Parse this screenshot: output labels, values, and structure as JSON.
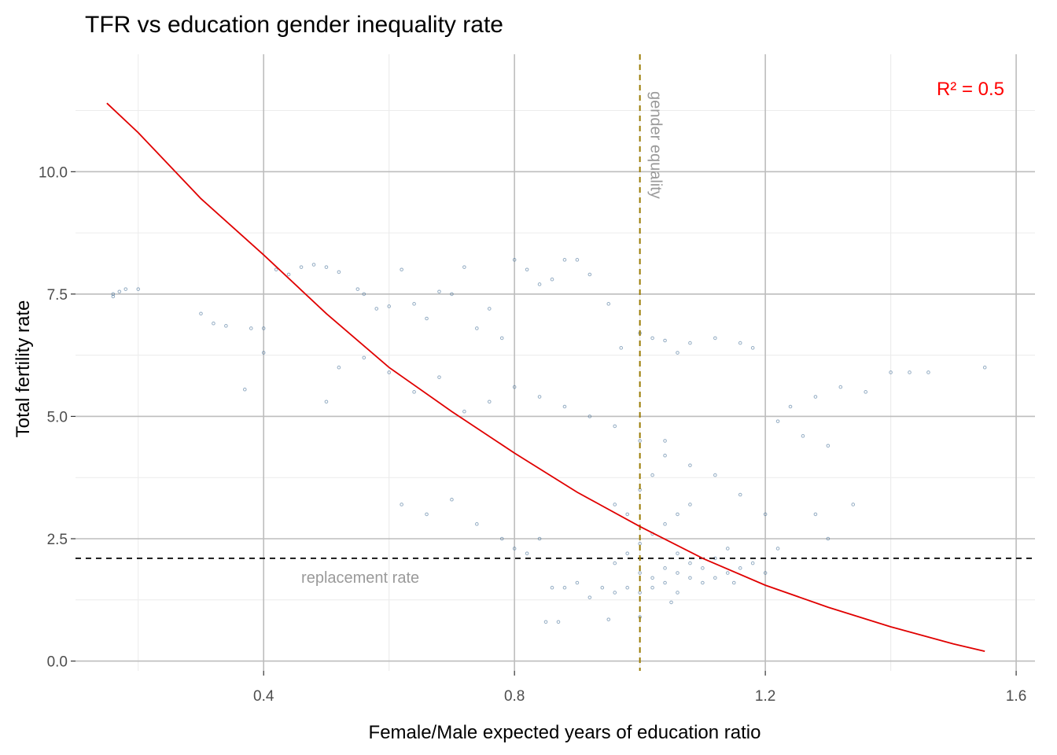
{
  "chart_data": {
    "type": "scatter",
    "title": "TFR vs education gender inequality rate",
    "xlabel": "Female/Male expected years of education ratio",
    "ylabel": "Total fertility rate",
    "xlim": [
      0.1,
      1.63
    ],
    "ylim": [
      -0.2,
      12.4
    ],
    "x_ticks": [
      0.4,
      0.8,
      1.2,
      1.6
    ],
    "x_tick_labels": [
      "0.4",
      "0.8",
      "1.2",
      "1.6"
    ],
    "y_ticks": [
      0.0,
      2.5,
      5.0,
      7.5,
      10.0
    ],
    "y_tick_labels": [
      "0.0",
      "2.5",
      "5.0",
      "7.5",
      "10.0"
    ],
    "grid": true,
    "point_color": "#3a6891",
    "fit_color": "#e00000",
    "series": [
      {
        "type": "scatter",
        "points": [
          [
            0.16,
            7.45
          ],
          [
            0.17,
            7.55
          ],
          [
            0.18,
            7.6
          ],
          [
            0.2,
            7.6
          ],
          [
            0.16,
            7.5
          ],
          [
            0.3,
            7.1
          ],
          [
            0.32,
            6.9
          ],
          [
            0.34,
            6.85
          ],
          [
            0.37,
            5.55
          ],
          [
            0.38,
            6.8
          ],
          [
            0.4,
            6.3
          ],
          [
            0.4,
            6.8
          ],
          [
            0.42,
            8.0
          ],
          [
            0.44,
            7.9
          ],
          [
            0.46,
            8.05
          ],
          [
            0.48,
            8.1
          ],
          [
            0.5,
            8.05
          ],
          [
            0.52,
            7.95
          ],
          [
            0.55,
            7.6
          ],
          [
            0.56,
            7.5
          ],
          [
            0.58,
            7.2
          ],
          [
            0.6,
            7.25
          ],
          [
            0.62,
            8.0
          ],
          [
            0.64,
            7.3
          ],
          [
            0.66,
            7.0
          ],
          [
            0.68,
            7.55
          ],
          [
            0.7,
            7.5
          ],
          [
            0.72,
            8.05
          ],
          [
            0.74,
            6.8
          ],
          [
            0.76,
            7.2
          ],
          [
            0.78,
            6.6
          ],
          [
            0.8,
            8.2
          ],
          [
            0.82,
            8.0
          ],
          [
            0.84,
            7.7
          ],
          [
            0.86,
            7.8
          ],
          [
            0.88,
            8.2
          ],
          [
            0.9,
            8.2
          ],
          [
            0.92,
            7.9
          ],
          [
            0.95,
            7.3
          ],
          [
            0.97,
            6.4
          ],
          [
            1.0,
            6.7
          ],
          [
            1.02,
            6.6
          ],
          [
            1.04,
            6.55
          ],
          [
            1.06,
            6.3
          ],
          [
            1.08,
            6.5
          ],
          [
            1.12,
            6.6
          ],
          [
            1.16,
            6.5
          ],
          [
            1.18,
            6.4
          ],
          [
            0.5,
            5.3
          ],
          [
            0.52,
            6.0
          ],
          [
            0.56,
            6.2
          ],
          [
            0.6,
            5.9
          ],
          [
            0.64,
            5.5
          ],
          [
            0.68,
            5.8
          ],
          [
            0.72,
            5.1
          ],
          [
            0.76,
            5.3
          ],
          [
            0.8,
            5.6
          ],
          [
            0.84,
            5.4
          ],
          [
            0.88,
            5.2
          ],
          [
            0.92,
            5.0
          ],
          [
            0.96,
            4.8
          ],
          [
            1.0,
            4.5
          ],
          [
            1.04,
            4.2
          ],
          [
            1.08,
            4.0
          ],
          [
            1.12,
            3.8
          ],
          [
            1.16,
            3.4
          ],
          [
            1.2,
            3.0
          ],
          [
            1.24,
            5.2
          ],
          [
            1.28,
            5.4
          ],
          [
            1.32,
            5.6
          ],
          [
            1.36,
            5.5
          ],
          [
            1.4,
            5.9
          ],
          [
            1.43,
            5.9
          ],
          [
            1.46,
            5.9
          ],
          [
            1.55,
            6.0
          ],
          [
            1.22,
            4.9
          ],
          [
            1.26,
            4.6
          ],
          [
            1.3,
            4.4
          ],
          [
            1.34,
            3.2
          ],
          [
            1.28,
            3.0
          ],
          [
            1.3,
            2.5
          ],
          [
            0.62,
            3.2
          ],
          [
            0.66,
            3.0
          ],
          [
            0.7,
            3.3
          ],
          [
            0.74,
            2.8
          ],
          [
            0.78,
            2.5
          ],
          [
            0.8,
            2.3
          ],
          [
            0.82,
            2.2
          ],
          [
            0.84,
            2.5
          ],
          [
            0.86,
            1.5
          ],
          [
            0.88,
            1.5
          ],
          [
            0.9,
            1.6
          ],
          [
            0.92,
            1.3
          ],
          [
            0.94,
            1.5
          ],
          [
            0.96,
            1.4
          ],
          [
            0.98,
            1.5
          ],
          [
            1.0,
            1.4
          ],
          [
            1.02,
            1.5
          ],
          [
            1.04,
            1.6
          ],
          [
            1.06,
            1.4
          ],
          [
            1.08,
            1.7
          ],
          [
            1.1,
            1.6
          ],
          [
            1.12,
            1.7
          ],
          [
            1.14,
            1.8
          ],
          [
            1.16,
            1.9
          ],
          [
            1.18,
            2.0
          ],
          [
            1.2,
            1.8
          ],
          [
            1.22,
            2.3
          ],
          [
            0.85,
            0.8
          ],
          [
            0.87,
            0.8
          ],
          [
            0.95,
            0.85
          ],
          [
            1.0,
            0.9
          ],
          [
            1.05,
            1.2
          ],
          [
            1.15,
            1.6
          ],
          [
            0.96,
            2.0
          ],
          [
            0.98,
            2.2
          ],
          [
            1.0,
            2.4
          ],
          [
            1.02,
            2.6
          ],
          [
            1.04,
            2.8
          ],
          [
            1.06,
            3.0
          ],
          [
            1.08,
            3.2
          ],
          [
            1.0,
            3.5
          ],
          [
            1.02,
            3.8
          ],
          [
            1.04,
            4.5
          ],
          [
            0.98,
            3.0
          ],
          [
            0.96,
            3.2
          ],
          [
            1.06,
            2.2
          ],
          [
            1.08,
            2.0
          ],
          [
            1.1,
            1.9
          ],
          [
            1.12,
            2.1
          ],
          [
            1.14,
            2.3
          ],
          [
            1.0,
            1.8
          ],
          [
            1.02,
            1.7
          ],
          [
            1.04,
            1.9
          ],
          [
            1.06,
            1.8
          ]
        ]
      },
      {
        "type": "line",
        "name": "",
        "x": [
          0.15,
          0.2,
          0.3,
          0.4,
          0.5,
          0.6,
          0.7,
          0.8,
          0.9,
          1.0,
          1.1,
          1.2,
          1.3,
          1.4,
          1.5,
          1.55
        ],
        "y": [
          11.4,
          10.8,
          9.45,
          8.3,
          7.1,
          6.0,
          5.1,
          4.25,
          3.45,
          2.75,
          2.1,
          1.55,
          1.1,
          0.7,
          0.35,
          0.2
        ]
      }
    ],
    "reference_lines": {
      "horizontal": {
        "y": 2.1,
        "label": "replacement rate",
        "color": "#000000"
      },
      "vertical": {
        "x": 1.0,
        "label": "gender equality",
        "color": "#9a7a00"
      }
    },
    "annotation": {
      "text": "R² = 0.5",
      "color": "#ff0000"
    }
  }
}
